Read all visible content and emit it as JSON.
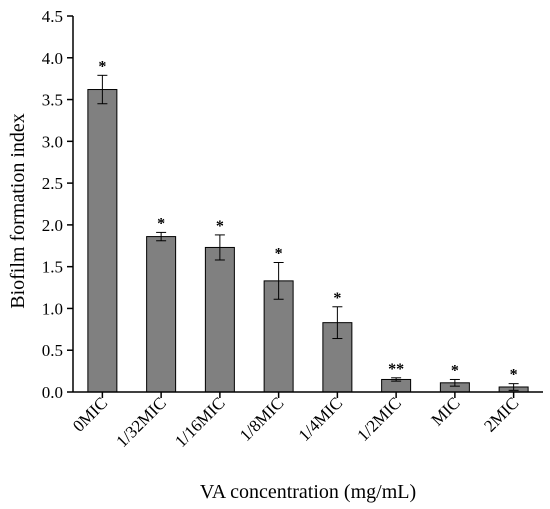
{
  "chart_data": {
    "type": "bar",
    "title": "",
    "xlabel": "VA concentration (mg/mL)",
    "ylabel": "Biofilm formation index",
    "ylim": [
      0,
      4.5
    ],
    "yticks": [
      "0.0",
      "0.5",
      "1.0",
      "1.5",
      "2.0",
      "2.5",
      "3.0",
      "3.5",
      "4.0",
      "4.5"
    ],
    "ytick_values": [
      0,
      0.5,
      1.0,
      1.5,
      2.0,
      2.5,
      3.0,
      3.5,
      4.0,
      4.5
    ],
    "categories": [
      "0MIC",
      "1/32MIC",
      "1/16MIC",
      "1/8MIC",
      "1/4MIC",
      "1/2MIC",
      "MIC",
      "2MIC"
    ],
    "values": [
      3.62,
      1.86,
      1.73,
      1.33,
      0.83,
      0.15,
      0.11,
      0.06
    ],
    "errors": [
      0.17,
      0.05,
      0.15,
      0.22,
      0.19,
      0.02,
      0.04,
      0.04
    ],
    "significance": [
      "*",
      "*",
      "*",
      "*",
      "*",
      "**",
      "*",
      "*"
    ],
    "bar_color": "#808080",
    "grid": false,
    "legend": "none"
  }
}
